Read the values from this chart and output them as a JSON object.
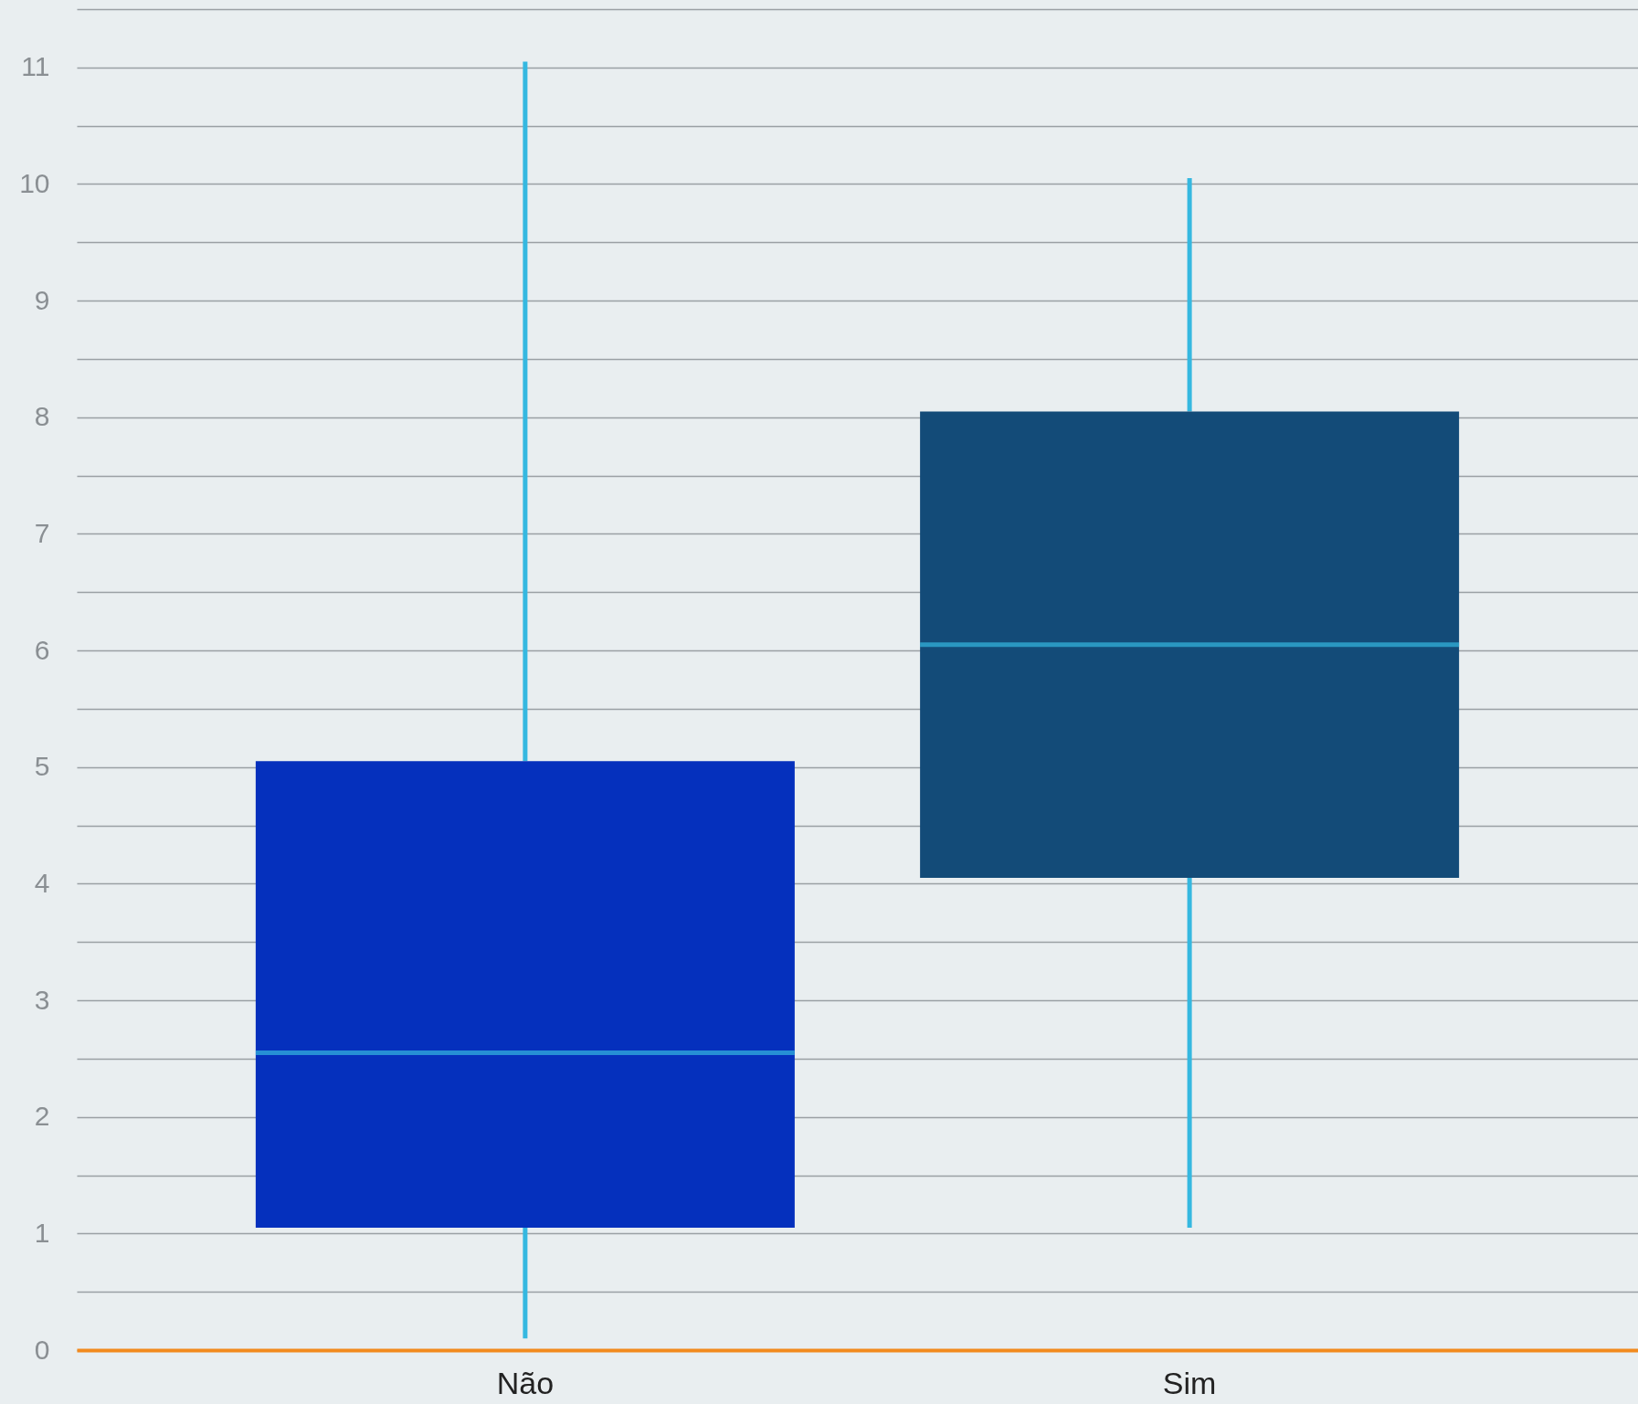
{
  "chart_data": {
    "type": "box",
    "categories": [
      "Não",
      "Sim"
    ],
    "boxes": [
      {
        "low": 0.1,
        "q1": 1.05,
        "median": 2.55,
        "q3": 5.05,
        "high": 11.05
      },
      {
        "low": 1.05,
        "q1": 4.05,
        "median": 6.05,
        "q3": 8.05,
        "high": 10.05
      }
    ],
    "colors": [
      "#0530bd",
      "#134b78"
    ],
    "ylim": [
      0,
      11.5
    ],
    "yticks": [
      0,
      {
        "value": 0.5,
        "label": null
      },
      1,
      {
        "value": 1.5,
        "label": null
      },
      2,
      {
        "value": 2.5,
        "label": null
      },
      3,
      {
        "value": 3.5,
        "label": null
      },
      4,
      {
        "value": 4.5,
        "label": null
      },
      5,
      {
        "value": 5.5,
        "label": null
      },
      6,
      {
        "value": 6.5,
        "label": null
      },
      7,
      {
        "value": 7.5,
        "label": null
      },
      8,
      {
        "value": 8.5,
        "label": null
      },
      9,
      {
        "value": 9.5,
        "label": null
      },
      10,
      {
        "value": 10.5,
        "label": null
      },
      11,
      {
        "value": 11.5,
        "label": null
      }
    ],
    "grid": true
  }
}
